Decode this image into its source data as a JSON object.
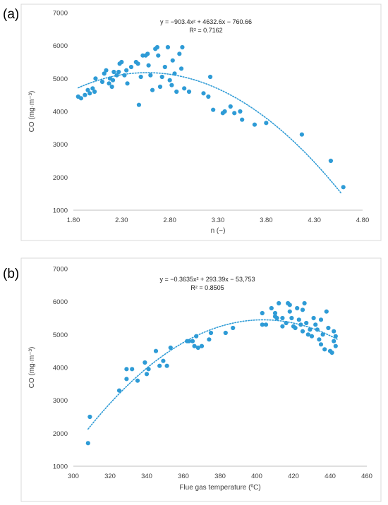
{
  "figure": {
    "panels": [
      {
        "label": "(a)"
      },
      {
        "label": "(b)"
      }
    ]
  },
  "chart_data": [
    {
      "type": "scatter",
      "panel_label": "(a)",
      "xlabel": "n (−)",
      "ylabel": "CO (mg·m⁻³)",
      "xlim": [
        1.8,
        4.8
      ],
      "ylim": [
        1000,
        7000
      ],
      "xticks": [
        1.8,
        2.3,
        2.8,
        3.3,
        3.8,
        4.3,
        4.8
      ],
      "xtick_labels": [
        "1.80",
        "2.30",
        "2.80",
        "3.30",
        "3.80",
        "4.30",
        "4.80"
      ],
      "yticks": [
        1000,
        2000,
        3000,
        4000,
        5000,
        6000,
        7000
      ],
      "grid": false,
      "annotations": [
        "y = −903.4x² + 4632.6x − 760.66",
        "R² = 0.7162"
      ],
      "trendline": {
        "type": "polynomial",
        "coefficients": [
          -903.4,
          4632.6,
          -760.66
        ],
        "x_range": [
          1.85,
          4.58
        ]
      },
      "color": "#2e9bd6",
      "series": [
        {
          "points": [
            [
              1.85,
              4450
            ],
            [
              1.88,
              4400
            ],
            [
              1.92,
              4500
            ],
            [
              1.95,
              4650
            ],
            [
              1.97,
              4550
            ],
            [
              2.0,
              4700
            ],
            [
              2.02,
              4600
            ],
            [
              2.03,
              5000
            ],
            [
              2.1,
              4900
            ],
            [
              2.12,
              5150
            ],
            [
              2.14,
              5250
            ],
            [
              2.17,
              4850
            ],
            [
              2.18,
              5000
            ],
            [
              2.2,
              4750
            ],
            [
              2.21,
              4950
            ],
            [
              2.22,
              5200
            ],
            [
              2.25,
              5100
            ],
            [
              2.27,
              5200
            ],
            [
              2.28,
              5450
            ],
            [
              2.3,
              5500
            ],
            [
              2.33,
              5100
            ],
            [
              2.35,
              5250
            ],
            [
              2.36,
              4850
            ],
            [
              2.4,
              5350
            ],
            [
              2.45,
              5500
            ],
            [
              2.47,
              5450
            ],
            [
              2.48,
              4200
            ],
            [
              2.5,
              5050
            ],
            [
              2.52,
              5700
            ],
            [
              2.55,
              5700
            ],
            [
              2.57,
              5750
            ],
            [
              2.58,
              5400
            ],
            [
              2.6,
              5100
            ],
            [
              2.62,
              4650
            ],
            [
              2.65,
              5900
            ],
            [
              2.67,
              5950
            ],
            [
              2.68,
              5700
            ],
            [
              2.7,
              4750
            ],
            [
              2.72,
              5050
            ],
            [
              2.75,
              5350
            ],
            [
              2.78,
              5950
            ],
            [
              2.8,
              4950
            ],
            [
              2.82,
              4800
            ],
            [
              2.83,
              5550
            ],
            [
              2.85,
              5150
            ],
            [
              2.87,
              4600
            ],
            [
              2.9,
              5750
            ],
            [
              2.92,
              5300
            ],
            [
              2.93,
              5950
            ],
            [
              2.95,
              4700
            ],
            [
              3.0,
              4600
            ],
            [
              3.15,
              4550
            ],
            [
              3.2,
              4450
            ],
            [
              3.22,
              5050
            ],
            [
              3.25,
              4050
            ],
            [
              3.35,
              3950
            ],
            [
              3.37,
              4000
            ],
            [
              3.43,
              4150
            ],
            [
              3.47,
              3950
            ],
            [
              3.53,
              4000
            ],
            [
              3.55,
              3750
            ],
            [
              3.68,
              3600
            ],
            [
              3.8,
              3650
            ],
            [
              4.17,
              3300
            ],
            [
              4.47,
              2500
            ],
            [
              4.6,
              1700
            ]
          ]
        }
      ]
    },
    {
      "type": "scatter",
      "panel_label": "(b)",
      "xlabel": "Flue gas temperature (ºC)",
      "ylabel": "CO (mg·m⁻³)",
      "xlim": [
        300,
        460
      ],
      "ylim": [
        1000,
        7000
      ],
      "xticks": [
        300,
        320,
        340,
        360,
        380,
        400,
        420,
        440,
        460
      ],
      "xtick_labels": [
        "300",
        "320",
        "340",
        "360",
        "380",
        "400",
        "420",
        "440",
        "460"
      ],
      "yticks": [
        1000,
        2000,
        3000,
        4000,
        5000,
        6000,
        7000
      ],
      "grid": false,
      "annotations": [
        "y = −0.3635x² + 293.39x − 53,753",
        "R² = 0.8505"
      ],
      "trendline": {
        "type": "polynomial",
        "coefficients": [
          -0.3635,
          293.39,
          -53753
        ],
        "x_range": [
          308,
          444
        ]
      },
      "color": "#2e9bd6",
      "series": [
        {
          "points": [
            [
              308,
              1700
            ],
            [
              309,
              2500
            ],
            [
              325,
              3300
            ],
            [
              329,
              3650
            ],
            [
              329,
              3950
            ],
            [
              332,
              3950
            ],
            [
              335,
              3600
            ],
            [
              339,
              4150
            ],
            [
              340,
              3800
            ],
            [
              341,
              3950
            ],
            [
              345,
              4500
            ],
            [
              347,
              4050
            ],
            [
              349,
              4200
            ],
            [
              351,
              4050
            ],
            [
              353,
              4600
            ],
            [
              362,
              4800
            ],
            [
              363,
              4800
            ],
            [
              365,
              4800
            ],
            [
              366,
              4650
            ],
            [
              367,
              4950
            ],
            [
              368,
              4600
            ],
            [
              370,
              4650
            ],
            [
              374,
              4850
            ],
            [
              375,
              5050
            ],
            [
              383,
              5050
            ],
            [
              387,
              5200
            ],
            [
              403,
              5300
            ],
            [
              403,
              5650
            ],
            [
              405,
              5300
            ],
            [
              408,
              5800
            ],
            [
              410,
              5550
            ],
            [
              410,
              5650
            ],
            [
              411,
              5500
            ],
            [
              412,
              5950
            ],
            [
              414,
              5250
            ],
            [
              414,
              5500
            ],
            [
              416,
              5350
            ],
            [
              417,
              5950
            ],
            [
              418,
              5900
            ],
            [
              418,
              5700
            ],
            [
              419,
              5500
            ],
            [
              420,
              5250
            ],
            [
              421,
              5200
            ],
            [
              422,
              5800
            ],
            [
              423,
              5450
            ],
            [
              424,
              5300
            ],
            [
              425,
              5100
            ],
            [
              425,
              5750
            ],
            [
              426,
              5950
            ],
            [
              427,
              5350
            ],
            [
              428,
              5000
            ],
            [
              429,
              5150
            ],
            [
              430,
              4950
            ],
            [
              431,
              5500
            ],
            [
              432,
              5300
            ],
            [
              433,
              5150
            ],
            [
              434,
              4850
            ],
            [
              435,
              5450
            ],
            [
              435,
              4700
            ],
            [
              436,
              5000
            ],
            [
              437,
              4550
            ],
            [
              438,
              5700
            ],
            [
              439,
              5200
            ],
            [
              440,
              4500
            ],
            [
              441,
              4450
            ],
            [
              442,
              5100
            ],
            [
              442,
              4800
            ],
            [
              443,
              4650
            ],
            [
              443,
              4950
            ]
          ]
        }
      ]
    }
  ]
}
